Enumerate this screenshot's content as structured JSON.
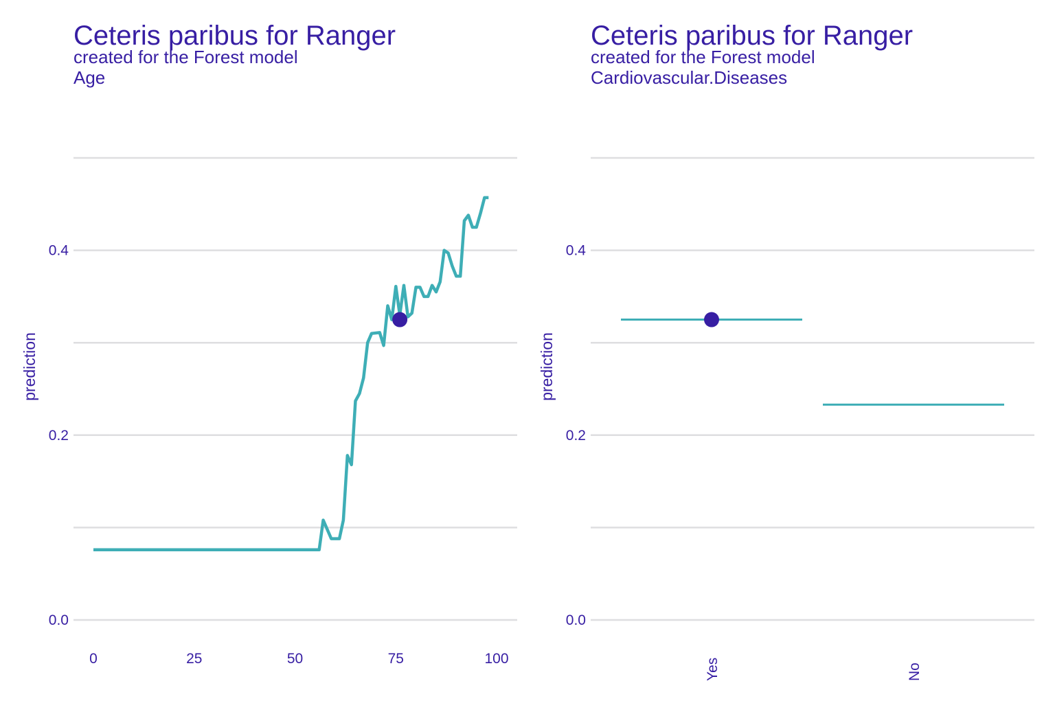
{
  "colors": {
    "text": "#371ea3",
    "line": "#3eaeb6",
    "point": "#371ea3",
    "grid": "#dedee0"
  },
  "chart_data": [
    {
      "type": "line",
      "title": "Ceteris paribus for Ranger",
      "subtitle": "created for the Forest model",
      "variable": "Age",
      "xlabel": "",
      "ylabel": "prediction",
      "xlim": [
        0,
        100
      ],
      "ylim": [
        0,
        0.5
      ],
      "x_ticks": [
        "0",
        "25",
        "50",
        "75",
        "100"
      ],
      "y_ticks": [
        "0.0",
        "0.2",
        "0.4"
      ],
      "grid": true,
      "series": [
        {
          "x": [
            0,
            56,
            57,
            59,
            61,
            62,
            63,
            64,
            65,
            66,
            67,
            68,
            69,
            71,
            72,
            73,
            74,
            75,
            76,
            77,
            78,
            79,
            80,
            81,
            82,
            83,
            84,
            85,
            86,
            87,
            88,
            89,
            90,
            91,
            92,
            93,
            94,
            95,
            96,
            97,
            98
          ],
          "y": [
            0.076,
            0.076,
            0.108,
            0.088,
            0.088,
            0.108,
            0.178,
            0.168,
            0.237,
            0.245,
            0.262,
            0.3,
            0.31,
            0.311,
            0.297,
            0.34,
            0.325,
            0.361,
            0.33,
            0.362,
            0.328,
            0.332,
            0.36,
            0.36,
            0.35,
            0.35,
            0.362,
            0.355,
            0.366,
            0.4,
            0.397,
            0.383,
            0.372,
            0.372,
            0.432,
            0.438,
            0.425,
            0.425,
            0.44,
            0.457,
            0.457
          ]
        }
      ],
      "observation": {
        "x": 76,
        "y": 0.325
      }
    },
    {
      "type": "line",
      "title": "Ceteris paribus for Ranger",
      "subtitle": "created for the Forest model",
      "variable": "Cardiovascular.Diseases",
      "xlabel": "",
      "ylabel": "prediction",
      "ylim": [
        0,
        0.5
      ],
      "categories": [
        "Yes",
        "No"
      ],
      "values": [
        0.325,
        0.233
      ],
      "y_ticks": [
        "0.0",
        "0.2",
        "0.4"
      ],
      "grid": true,
      "observation": {
        "category": "Yes",
        "y": 0.325
      }
    }
  ]
}
